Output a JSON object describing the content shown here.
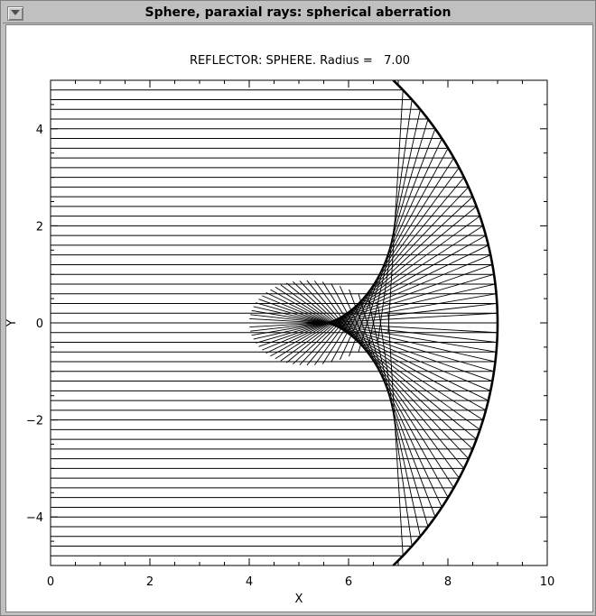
{
  "window": {
    "title": "Sphere, paraxial rays: spherical aberration"
  },
  "chart_data": {
    "type": "line",
    "title": "REFLECTOR: SPHERE. Radius =   7.00",
    "xlabel": "X",
    "ylabel": "Y",
    "xlim": [
      0,
      10
    ],
    "ylim": [
      -5,
      5
    ],
    "xticks": [
      0,
      2,
      4,
      6,
      8,
      10
    ],
    "xtick_labels": [
      "0",
      "2",
      "4",
      "6",
      "8",
      "10"
    ],
    "yticks": [
      -4,
      -2,
      0,
      2,
      4
    ],
    "ytick_labels": [
      "−4",
      "−2",
      "0",
      "2",
      "4"
    ],
    "grid": false,
    "mirror": {
      "shape": "circle arc",
      "center": [
        2,
        0
      ],
      "radius": 7.0,
      "y_range": [
        -5,
        5
      ]
    },
    "rays": {
      "direction": "parallel to X axis, incoming from the left",
      "x_start": 0,
      "y_values": [
        -4.8,
        -4.6,
        -4.4,
        -4.2,
        -4.0,
        -3.8,
        -3.6,
        -3.4,
        -3.2,
        -3.0,
        -2.8,
        -2.6,
        -2.4,
        -2.2,
        -2.0,
        -1.8,
        -1.6,
        -1.4,
        -1.2,
        -1.0,
        -0.8,
        -0.6,
        -0.4,
        -0.2,
        0.0,
        0.2,
        0.4,
        0.6,
        0.8,
        1.0,
        1.2,
        1.4,
        1.6,
        1.8,
        2.0,
        2.2,
        2.4,
        2.6,
        2.8,
        3.0,
        3.2,
        3.4,
        3.6,
        3.8,
        4.0,
        4.2,
        4.4,
        4.6,
        4.8
      ],
      "reflected_length": 5.0,
      "reflected_clip_x": [
        3.9,
        10
      ]
    }
  }
}
